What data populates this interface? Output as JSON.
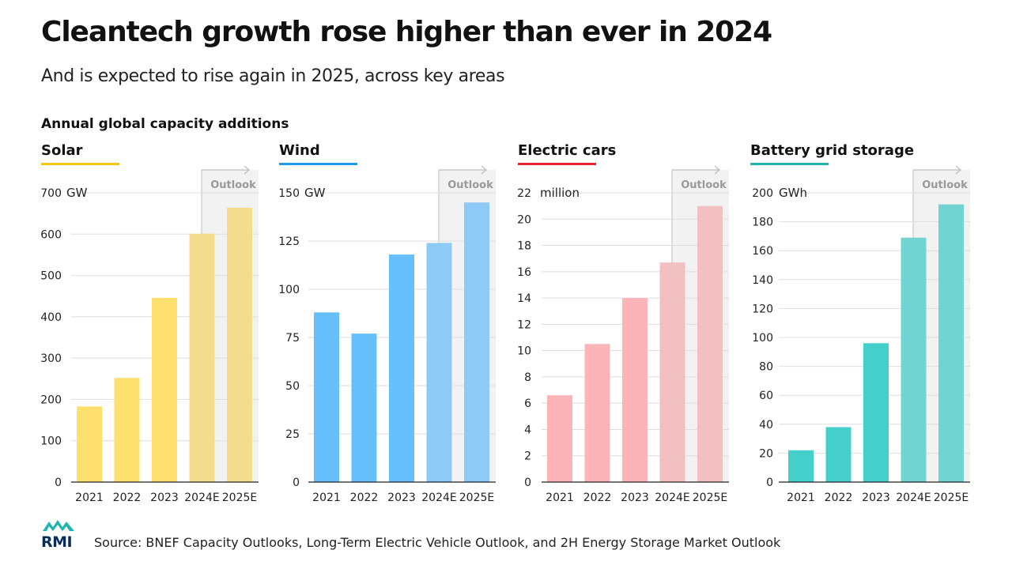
{
  "title": "Cleantech growth rose higher than ever in 2024",
  "subtitle": "And is expected to rise again in 2025, across key areas",
  "section_label": "Annual global capacity additions",
  "outlook_label": "Outlook",
  "source": "Source: BNEF Capacity Outlooks, Long-Term Electric Vehicle Outlook, and 2H Energy Storage Market Outlook",
  "logo_text": "RMI",
  "chart_data": [
    {
      "type": "bar",
      "title": "Solar",
      "unit": "GW",
      "color": "#FFDF6E",
      "outlook_color": "#F3DC8B",
      "categories": [
        "2021",
        "2022",
        "2023",
        "2024E",
        "2025E"
      ],
      "values": [
        183,
        252,
        446,
        601,
        664
      ],
      "ylim": [
        0,
        700
      ],
      "yticks": [
        0,
        100,
        200,
        300,
        400,
        500,
        600,
        700
      ],
      "outlook_from": "2024E"
    },
    {
      "type": "bar",
      "title": "Wind",
      "unit": "GW",
      "color": "#67C0FB",
      "outlook_color": "#8DCBF6",
      "categories": [
        "2021",
        "2022",
        "2023",
        "2024E",
        "2025E"
      ],
      "values": [
        88,
        77,
        118,
        124,
        145
      ],
      "ylim": [
        0,
        150
      ],
      "yticks": [
        0,
        25,
        50,
        75,
        100,
        125,
        150
      ],
      "outlook_from": "2024E"
    },
    {
      "type": "bar",
      "title": "Electric cars",
      "unit": "million",
      "color": "#FBB4B8",
      "outlook_color": "#F3C0C2",
      "categories": [
        "2021",
        "2022",
        "2023",
        "2024E",
        "2025E"
      ],
      "values": [
        6.6,
        10.5,
        14,
        16.7,
        21
      ],
      "ylim": [
        0,
        22
      ],
      "yticks": [
        0,
        2,
        4,
        6,
        8,
        10,
        12,
        14,
        16,
        18,
        20,
        22
      ],
      "outlook_from": "2024E"
    },
    {
      "type": "bar",
      "title": "Battery grid storage",
      "unit": "GWh",
      "color": "#44CFCB",
      "outlook_color": "#71D4D1",
      "categories": [
        "2021",
        "2022",
        "2023",
        "2024E",
        "2025E"
      ],
      "values": [
        22,
        38,
        96,
        169,
        192
      ],
      "ylim": [
        0,
        200
      ],
      "yticks": [
        0,
        20,
        40,
        60,
        80,
        100,
        120,
        140,
        160,
        180,
        200
      ],
      "outlook_from": "2024E"
    }
  ],
  "accent_colors": {
    "solar": "#F5C518",
    "wind": "#1F9BEA",
    "electric_cars": "#E3242B",
    "battery_grid_storage": "#1FB5AE"
  }
}
